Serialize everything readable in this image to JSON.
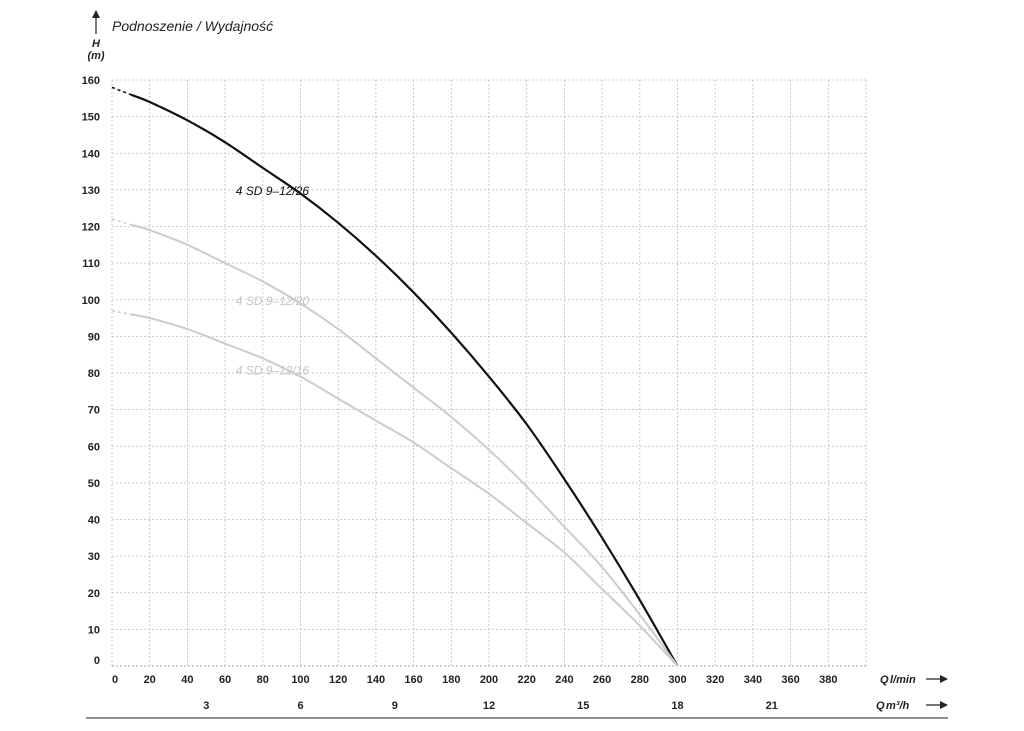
{
  "chart_data": {
    "type": "line",
    "title": "Podnoszenie / Wydajność",
    "y_axis": {
      "symbol": "H",
      "unit": "(m)",
      "ylim": [
        0,
        160
      ],
      "ticks": [
        0,
        10,
        20,
        30,
        40,
        50,
        60,
        70,
        80,
        90,
        100,
        110,
        120,
        130,
        140,
        150,
        160
      ]
    },
    "x_axis": {
      "symbol": "Q",
      "unit": "l/min",
      "xlim": [
        0,
        400
      ],
      "ticks": [
        0,
        20,
        40,
        60,
        80,
        100,
        120,
        140,
        160,
        180,
        200,
        220,
        240,
        260,
        280,
        300,
        320,
        340,
        360,
        380
      ]
    },
    "x_axis_secondary": {
      "symbol": "Q",
      "unit": "m³/h",
      "ticks": [
        3,
        6,
        9,
        12,
        15,
        18,
        21
      ]
    },
    "grid": true,
    "series": [
      {
        "name": "4 SD 9–12/26",
        "color": "#111111",
        "x": [
          0,
          20,
          40,
          60,
          80,
          100,
          120,
          140,
          160,
          180,
          200,
          220,
          240,
          260,
          280,
          300
        ],
        "y": [
          158,
          154,
          149,
          143,
          136,
          129,
          121,
          112,
          102,
          91,
          79,
          66,
          51,
          35,
          18,
          0
        ],
        "label_at": [
          72,
          130
        ]
      },
      {
        "name": "4 SD 9–12/20",
        "color": "#cccccc",
        "x": [
          0,
          20,
          40,
          60,
          80,
          100,
          120,
          140,
          160,
          180,
          200,
          220,
          240,
          260,
          280,
          300
        ],
        "y": [
          122,
          119,
          115,
          110,
          105,
          99,
          92,
          84,
          76,
          68,
          59,
          49,
          38,
          27,
          14,
          0
        ],
        "label_at": [
          72,
          100
        ]
      },
      {
        "name": "4 SD 9–12/16",
        "color": "#cccccc",
        "x": [
          0,
          20,
          40,
          60,
          80,
          100,
          120,
          140,
          160,
          180,
          200,
          220,
          240,
          260,
          280,
          300
        ],
        "y": [
          97,
          95,
          92,
          88,
          84,
          79,
          73,
          67,
          61,
          54,
          47,
          39,
          31,
          21,
          11,
          0
        ],
        "label_at": [
          72,
          81
        ]
      }
    ]
  }
}
